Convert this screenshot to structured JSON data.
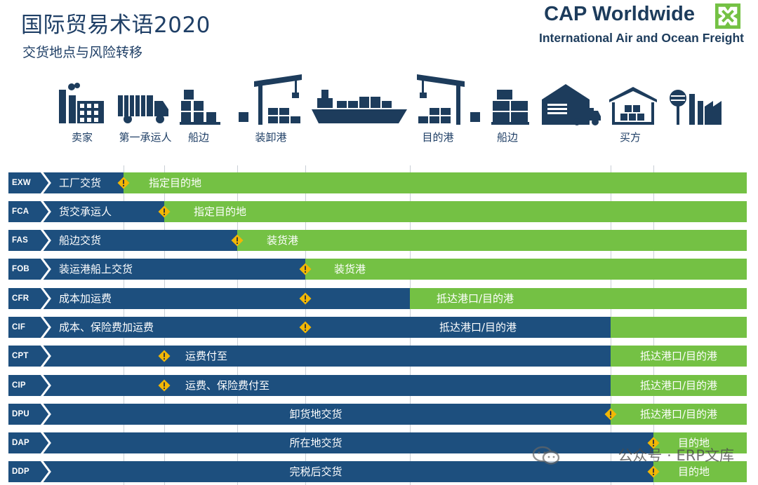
{
  "header": {
    "title": "国际贸易术语2020",
    "subtitle": "交货地点与风险转移"
  },
  "brand": {
    "name": "CAP Worldwide",
    "tagline": "International Air and Ocean Freight",
    "accent": "#74c144"
  },
  "stages": [
    {
      "label": "卖家",
      "icon": "factory-icon"
    },
    {
      "label": "第一承运人",
      "icon": "truck-icon"
    },
    {
      "label": "船边",
      "icon": "pallet-boxes-icon"
    },
    {
      "label": "装卸港",
      "icon": "port-crane-icon"
    },
    {
      "label": "",
      "icon": "container-ship-icon"
    },
    {
      "label": "目的港",
      "icon": "port-crane-icon"
    },
    {
      "label": "船边",
      "icon": "pallet-boxes-icon"
    },
    {
      "label": "买方",
      "icon": "warehouse-truck-icon"
    },
    {
      "label": "",
      "icon": "warehouse-icon"
    },
    {
      "label": "",
      "icon": "factory-icon"
    }
  ],
  "colors": {
    "seller_risk": "#1d4f7e",
    "buyer_risk": "#74c144",
    "risk_marker": "#f2b705"
  },
  "terms": [
    {
      "code": "EXW",
      "seller_text": "工厂交货",
      "buyer_text": "指定目的地"
    },
    {
      "code": "FCA",
      "seller_text": "货交承运人",
      "buyer_text": "指定目的地"
    },
    {
      "code": "FAS",
      "seller_text": "船边交货",
      "buyer_text": "装货港"
    },
    {
      "code": "FOB",
      "seller_text": "装运港船上交货",
      "buyer_text": "装货港"
    },
    {
      "code": "CFR",
      "seller_text": "成本加运费",
      "buyer_text": "抵达港口/目的港"
    },
    {
      "code": "CIF",
      "seller_text": "成本、保险费加运费",
      "buyer_text": "抵达港口/目的港"
    },
    {
      "code": "CPT",
      "seller_text": "运费付至",
      "buyer_text": "抵达港口/目的港"
    },
    {
      "code": "CIP",
      "seller_text": "运费、保险费付至",
      "buyer_text": "抵达港口/目的港"
    },
    {
      "code": "DPU",
      "seller_text": "卸货地交货",
      "buyer_text": "抵达港口/目的港"
    },
    {
      "code": "DAP",
      "seller_text": "所在地交货",
      "buyer_text": "目的地"
    },
    {
      "code": "DDP",
      "seller_text": "完税后交货",
      "buyer_text": "目的地"
    }
  ],
  "watermark": "公众号 · ERP文库"
}
